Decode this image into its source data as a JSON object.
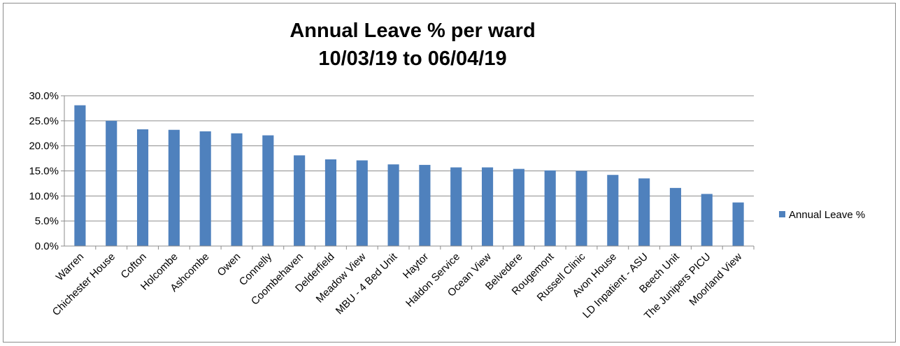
{
  "chart_data": {
    "type": "bar",
    "title": "Annual Leave % per ward",
    "subtitle": "10/03/19 to 06/04/19",
    "xlabel": "",
    "ylabel": "",
    "ylim": [
      0,
      0.3
    ],
    "y_tick_step": 0.05,
    "y_tick_labels": [
      "0.0%",
      "5.0%",
      "10.0%",
      "15.0%",
      "20.0%",
      "25.0%",
      "30.0%"
    ],
    "grid": true,
    "legend_position": "right",
    "categories": [
      "Warren",
      "Chichester House",
      "Cofton",
      "Holcombe",
      "Ashcombe",
      "Owen",
      "Connelly",
      "Coombehaven",
      "Delderfield",
      "Meadow View",
      "MBU - 4 Bed Unit",
      "Haytor",
      "Haldon Service",
      "Ocean View",
      "Belvedere",
      "Rougemont",
      "Russell Clinic",
      "Avon House",
      "LD Inpatient - ASU",
      "Beech Unit",
      "The Junipers PICU",
      "Moorland View"
    ],
    "series": [
      {
        "name": "Annual Leave %",
        "color": "#4f81bd",
        "values": [
          0.281,
          0.25,
          0.233,
          0.232,
          0.229,
          0.225,
          0.221,
          0.181,
          0.173,
          0.171,
          0.163,
          0.162,
          0.157,
          0.157,
          0.154,
          0.151,
          0.15,
          0.142,
          0.135,
          0.116,
          0.104,
          0.087
        ]
      }
    ]
  }
}
